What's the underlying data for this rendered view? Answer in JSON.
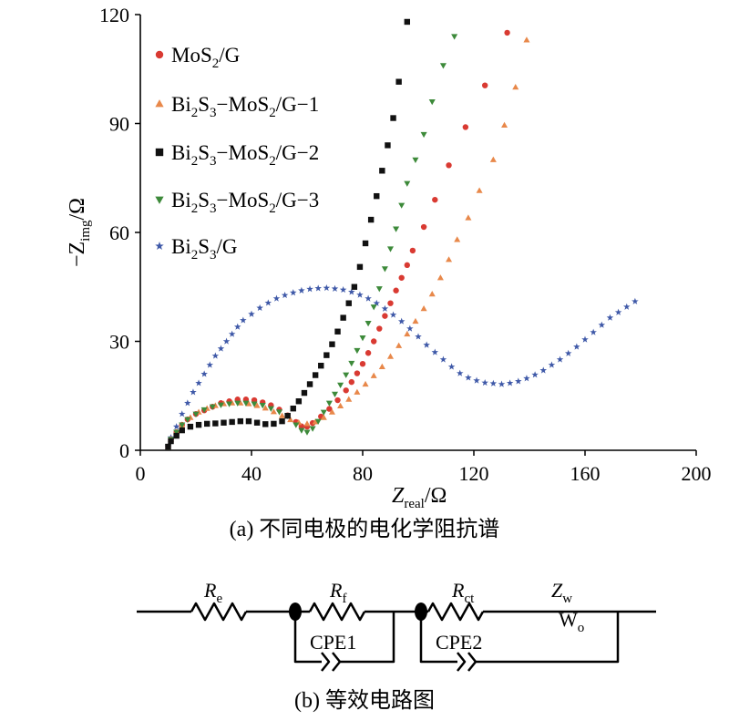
{
  "chart_data": {
    "type": "scatter",
    "x_axis_label": {
      "main": "Z",
      "sub": "real",
      "unit": "/Ω"
    },
    "y_axis_label": {
      "prefix": "−Z",
      "sub": "img",
      "unit": "/Ω"
    },
    "xlim": [
      0,
      200
    ],
    "ylim": [
      0,
      120
    ],
    "x_ticks": [
      0,
      40,
      80,
      120,
      160,
      200
    ],
    "y_ticks": [
      0,
      30,
      60,
      90,
      120
    ],
    "x_tick_labels": [
      "0",
      "40",
      "80",
      "120",
      "160",
      "200"
    ],
    "y_tick_labels": [
      "0",
      "30",
      "60",
      "90",
      "120"
    ],
    "legend_position": "top-left",
    "series": [
      {
        "name": "MoS₂/G",
        "legend_parts": [
          {
            "t": "MoS"
          },
          {
            "t": "2",
            "sub": true
          },
          {
            "t": "/G"
          }
        ],
        "color": "#d93a32",
        "marker": "circle",
        "points": [
          [
            10,
            1
          ],
          [
            11,
            3
          ],
          [
            13,
            5
          ],
          [
            15,
            7
          ],
          [
            17,
            8.5
          ],
          [
            20,
            10
          ],
          [
            23,
            11
          ],
          [
            26,
            12
          ],
          [
            29,
            13
          ],
          [
            32,
            13.5
          ],
          [
            35,
            14
          ],
          [
            38,
            14
          ],
          [
            41,
            13.8
          ],
          [
            44,
            13.2
          ],
          [
            47,
            12.4
          ],
          [
            50,
            11.2
          ],
          [
            53,
            9.6
          ],
          [
            56,
            7.8
          ],
          [
            58,
            6.6
          ],
          [
            60,
            6.5
          ],
          [
            62,
            7.5
          ],
          [
            65,
            9.3
          ],
          [
            68,
            11.4
          ],
          [
            71,
            13.8
          ],
          [
            74,
            16.5
          ],
          [
            76,
            18.8
          ],
          [
            78,
            21.2
          ],
          [
            80,
            23.8
          ],
          [
            82,
            26.8
          ],
          [
            84,
            30
          ],
          [
            86,
            33.5
          ],
          [
            88,
            37
          ],
          [
            90,
            40.5
          ],
          [
            92,
            44
          ],
          [
            94,
            47.5
          ],
          [
            96,
            51
          ],
          [
            98,
            55
          ],
          [
            102,
            61.5
          ],
          [
            106,
            69
          ],
          [
            111,
            78.5
          ],
          [
            117,
            89
          ],
          [
            124,
            100.5
          ],
          [
            132,
            115
          ]
        ]
      },
      {
        "name": "Bi₂S₃−MoS₂/G−1",
        "legend_parts": [
          {
            "t": "Bi"
          },
          {
            "t": "2",
            "sub": true
          },
          {
            "t": "S"
          },
          {
            "t": "3",
            "sub": true
          },
          {
            "t": "−MoS"
          },
          {
            "t": "2",
            "sub": true
          },
          {
            "t": "/G−1"
          }
        ],
        "color": "#e8884a",
        "marker": "triangle-up",
        "points": [
          [
            10,
            1
          ],
          [
            11,
            3
          ],
          [
            13,
            5
          ],
          [
            15,
            7
          ],
          [
            18,
            9
          ],
          [
            21,
            10.5
          ],
          [
            24,
            11.5
          ],
          [
            27,
            12.3
          ],
          [
            30,
            12.8
          ],
          [
            33,
            13
          ],
          [
            36,
            13
          ],
          [
            39,
            12.8
          ],
          [
            42,
            12.3
          ],
          [
            45,
            11.6
          ],
          [
            48,
            10.6
          ],
          [
            51,
            9.5
          ],
          [
            54,
            8.4
          ],
          [
            57,
            7.6
          ],
          [
            60,
            7.3
          ],
          [
            63,
            7.8
          ],
          [
            66,
            9
          ],
          [
            69,
            10.5
          ],
          [
            72,
            12.2
          ],
          [
            75,
            14
          ],
          [
            78,
            16
          ],
          [
            81,
            18.2
          ],
          [
            84,
            20.5
          ],
          [
            87,
            23
          ],
          [
            90,
            25.8
          ],
          [
            93,
            28.8
          ],
          [
            96,
            32
          ],
          [
            99,
            35.5
          ],
          [
            102,
            39
          ],
          [
            105,
            43
          ],
          [
            108,
            47.5
          ],
          [
            111,
            52.5
          ],
          [
            114,
            58
          ],
          [
            118,
            64
          ],
          [
            122,
            71.5
          ],
          [
            127,
            80
          ],
          [
            131,
            89.5
          ],
          [
            135,
            100
          ],
          [
            139,
            113
          ]
        ]
      },
      {
        "name": "Bi₂S₃−MoS₂/G−2",
        "legend_parts": [
          {
            "t": "Bi"
          },
          {
            "t": "2",
            "sub": true
          },
          {
            "t": "S"
          },
          {
            "t": "3",
            "sub": true
          },
          {
            "t": "−MoS"
          },
          {
            "t": "2",
            "sub": true
          },
          {
            "t": "/G−2"
          }
        ],
        "color": "#111111",
        "marker": "square",
        "points": [
          [
            10,
            1
          ],
          [
            11,
            2.5
          ],
          [
            13,
            4
          ],
          [
            15,
            5.5
          ],
          [
            18,
            6.5
          ],
          [
            21,
            7
          ],
          [
            24,
            7.3
          ],
          [
            27,
            7.4
          ],
          [
            30,
            7.6
          ],
          [
            33,
            7.8
          ],
          [
            36,
            8
          ],
          [
            39,
            8
          ],
          [
            42,
            7.6
          ],
          [
            45,
            7.2
          ],
          [
            48,
            7.3
          ],
          [
            51,
            8
          ],
          [
            53,
            9.5
          ],
          [
            55,
            11.5
          ],
          [
            57,
            13.5
          ],
          [
            59,
            15.8
          ],
          [
            61,
            18.2
          ],
          [
            63,
            20.7
          ],
          [
            65,
            23.3
          ],
          [
            67,
            26.2
          ],
          [
            69,
            29.2
          ],
          [
            71,
            32.7
          ],
          [
            73,
            36.5
          ],
          [
            75,
            40.5
          ],
          [
            77,
            45
          ],
          [
            79,
            50.5
          ],
          [
            81,
            57
          ],
          [
            83,
            63.5
          ],
          [
            85,
            70
          ],
          [
            87,
            77
          ],
          [
            89,
            84
          ],
          [
            91,
            91.5
          ],
          [
            93,
            101.5
          ],
          [
            96,
            118
          ]
        ]
      },
      {
        "name": "Bi₂S₃−MoS₂/G−3",
        "legend_parts": [
          {
            "t": "Bi"
          },
          {
            "t": "2",
            "sub": true
          },
          {
            "t": "S"
          },
          {
            "t": "3",
            "sub": true
          },
          {
            "t": "−MoS"
          },
          {
            "t": "2",
            "sub": true
          },
          {
            "t": "/G−3"
          }
        ],
        "color": "#3d8a3a",
        "marker": "triangle-down",
        "points": [
          [
            10,
            1
          ],
          [
            11,
            3
          ],
          [
            13,
            5
          ],
          [
            15,
            7
          ],
          [
            17,
            8.5
          ],
          [
            20,
            10
          ],
          [
            23,
            11.2
          ],
          [
            26,
            12
          ],
          [
            29,
            12.5
          ],
          [
            32,
            12.8
          ],
          [
            35,
            13
          ],
          [
            38,
            13
          ],
          [
            41,
            12.8
          ],
          [
            44,
            12.4
          ],
          [
            47,
            11.5
          ],
          [
            50,
            10.6
          ],
          [
            53,
            9.5
          ],
          [
            56,
            7
          ],
          [
            58,
            5.5
          ],
          [
            60,
            5
          ],
          [
            62,
            6
          ],
          [
            64,
            8
          ],
          [
            66,
            10.5
          ],
          [
            68,
            13
          ],
          [
            70,
            15.5
          ],
          [
            72,
            18
          ],
          [
            74,
            20.8
          ],
          [
            76,
            24
          ],
          [
            78,
            27.5
          ],
          [
            80,
            31
          ],
          [
            82,
            35
          ],
          [
            84,
            39.5
          ],
          [
            86,
            44.5
          ],
          [
            88,
            50
          ],
          [
            90,
            55.5
          ],
          [
            92,
            61
          ],
          [
            94,
            67.5
          ],
          [
            96,
            73.5
          ],
          [
            99,
            80
          ],
          [
            102,
            87
          ],
          [
            105,
            96
          ],
          [
            109,
            106
          ],
          [
            113,
            114
          ]
        ]
      },
      {
        "name": "Bi₂S₃/G",
        "legend_parts": [
          {
            "t": "Bi"
          },
          {
            "t": "2",
            "sub": true
          },
          {
            "t": "S"
          },
          {
            "t": "3",
            "sub": true
          },
          {
            "t": "/G"
          }
        ],
        "color": "#3f59a8",
        "marker": "star",
        "points": [
          [
            10,
            1
          ],
          [
            11,
            3.5
          ],
          [
            13,
            6.5
          ],
          [
            15,
            10
          ],
          [
            17,
            13
          ],
          [
            19,
            16
          ],
          [
            21,
            18.5
          ],
          [
            23,
            21
          ],
          [
            25,
            23.5
          ],
          [
            27,
            26
          ],
          [
            29,
            28
          ],
          [
            31,
            30
          ],
          [
            33,
            32
          ],
          [
            35,
            34
          ],
          [
            37,
            35.8
          ],
          [
            40,
            37.5
          ],
          [
            43,
            39.2
          ],
          [
            46,
            40.6
          ],
          [
            49,
            41.8
          ],
          [
            52,
            42.7
          ],
          [
            55,
            43.4
          ],
          [
            58,
            44
          ],
          [
            61,
            44.4
          ],
          [
            64,
            44.6
          ],
          [
            67,
            44.7
          ],
          [
            70,
            44.5
          ],
          [
            73,
            44.2
          ],
          [
            76,
            43.6
          ],
          [
            79,
            42.8
          ],
          [
            82,
            41.8
          ],
          [
            85,
            40.5
          ],
          [
            88,
            39
          ],
          [
            91,
            37.3
          ],
          [
            94,
            35.5
          ],
          [
            97,
            33.5
          ],
          [
            100,
            31.3
          ],
          [
            103,
            29
          ],
          [
            106,
            27
          ],
          [
            109,
            25
          ],
          [
            112,
            23
          ],
          [
            115,
            21.2
          ],
          [
            118,
            20
          ],
          [
            121,
            19.2
          ],
          [
            124,
            18.6
          ],
          [
            127,
            18.4
          ],
          [
            130,
            18.2
          ],
          [
            133,
            18.5
          ],
          [
            136,
            19
          ],
          [
            139,
            19.8
          ],
          [
            142,
            20.8
          ],
          [
            145,
            22
          ],
          [
            148,
            23.5
          ],
          [
            151,
            25
          ],
          [
            154,
            26.7
          ],
          [
            157,
            28.5
          ],
          [
            160,
            30.5
          ],
          [
            163,
            32.5
          ],
          [
            166,
            34.5
          ],
          [
            169,
            36.5
          ],
          [
            172,
            38
          ],
          [
            175,
            39.5
          ],
          [
            178,
            41
          ]
        ]
      }
    ]
  },
  "captions": {
    "chart": "(a) 不同电极的电化学阻抗谱",
    "circuit": "(b) 等效电路图"
  },
  "circuit": {
    "re": {
      "main": "R",
      "sub": "e"
    },
    "rf": {
      "main": "R",
      "sub": "f"
    },
    "rct": {
      "main": "R",
      "sub": "ct"
    },
    "zw": {
      "main": "Z",
      "sub": "w"
    },
    "wo": {
      "main": "W",
      "sub": "o"
    },
    "cpe1": "CPE1",
    "cpe2": "CPE2"
  }
}
